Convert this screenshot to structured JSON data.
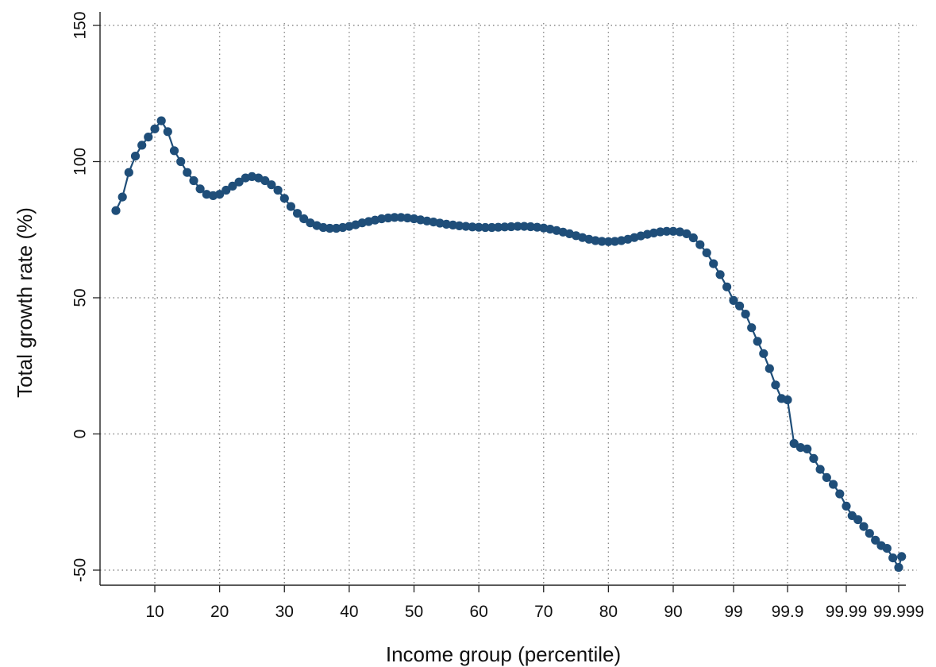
{
  "chart_data": {
    "type": "line",
    "title": "",
    "xlabel": "Income group (percentile)",
    "ylabel": "Total growth rate (%)",
    "ylim": [
      -50,
      150
    ],
    "grid": true,
    "x_ticks": [
      "10",
      "20",
      "30",
      "40",
      "50",
      "60",
      "70",
      "80",
      "90",
      "99",
      "99.9",
      "99.99",
      "99.999"
    ],
    "y_ticks": [
      -50,
      0,
      50,
      100,
      150
    ],
    "series": [
      {
        "color": "#1f4e79",
        "marker": "circle",
        "x": [
          4,
          5,
          6,
          7,
          8,
          9,
          10,
          11,
          12,
          13,
          14,
          15,
          16,
          17,
          18,
          19,
          20,
          21,
          22,
          23,
          24,
          25,
          26,
          27,
          28,
          29,
          30,
          31,
          32,
          33,
          34,
          35,
          36,
          37,
          38,
          39,
          40,
          41,
          42,
          43,
          44,
          45,
          46,
          47,
          48,
          49,
          50,
          51,
          52,
          53,
          54,
          55,
          56,
          57,
          58,
          59,
          60,
          61,
          62,
          63,
          64,
          65,
          66,
          67,
          68,
          69,
          70,
          71,
          72,
          73,
          74,
          75,
          76,
          77,
          78,
          79,
          80,
          81,
          82,
          83,
          84,
          85,
          86,
          87,
          88,
          89,
          90,
          91,
          92,
          93,
          94,
          95,
          96,
          97,
          98,
          99,
          99.1,
          99.2,
          99.3,
          99.4,
          99.5,
          99.6,
          99.7,
          99.8,
          99.9,
          99.91,
          99.92,
          99.93,
          99.94,
          99.95,
          99.96,
          99.97,
          99.98,
          99.99,
          99.991,
          99.992,
          99.993,
          99.994,
          99.995,
          99.996,
          99.997,
          99.998,
          99.999,
          99.9995
        ],
        "y": [
          82,
          87,
          96,
          102,
          106,
          109,
          112,
          115,
          111,
          104,
          100,
          96,
          93,
          90,
          88,
          87.5,
          88,
          89.5,
          91,
          92.5,
          94,
          94.5,
          94,
          93,
          91.5,
          89.5,
          86.5,
          83.5,
          81,
          79,
          77.5,
          76.5,
          75.8,
          75.5,
          75.5,
          75.8,
          76.2,
          76.8,
          77.5,
          78,
          78.5,
          79,
          79.3,
          79.5,
          79.5,
          79.3,
          79,
          78.6,
          78.2,
          77.8,
          77.4,
          77,
          76.7,
          76.4,
          76.2,
          76,
          75.9,
          75.8,
          75.8,
          75.9,
          76,
          76.1,
          76.2,
          76.2,
          76.1,
          75.9,
          75.6,
          75.2,
          74.7,
          74.1,
          73.5,
          72.8,
          72.1,
          71.5,
          71,
          70.7,
          70.6,
          70.7,
          71,
          71.5,
          72.1,
          72.7,
          73.3,
          73.8,
          74.2,
          74.4,
          74.4,
          74.2,
          73.5,
          72,
          69.5,
          66.5,
          62.5,
          58.5,
          54,
          49,
          47,
          44,
          39,
          34,
          29.5,
          24,
          18,
          13,
          12.5,
          -3.5,
          -5,
          -5.5,
          -9,
          -13,
          -16,
          -18.5,
          -22,
          -26.5,
          -30,
          -31.5,
          -34,
          -36.5,
          -39,
          -41,
          -42,
          -45.5,
          -49,
          -45
        ]
      }
    ]
  }
}
